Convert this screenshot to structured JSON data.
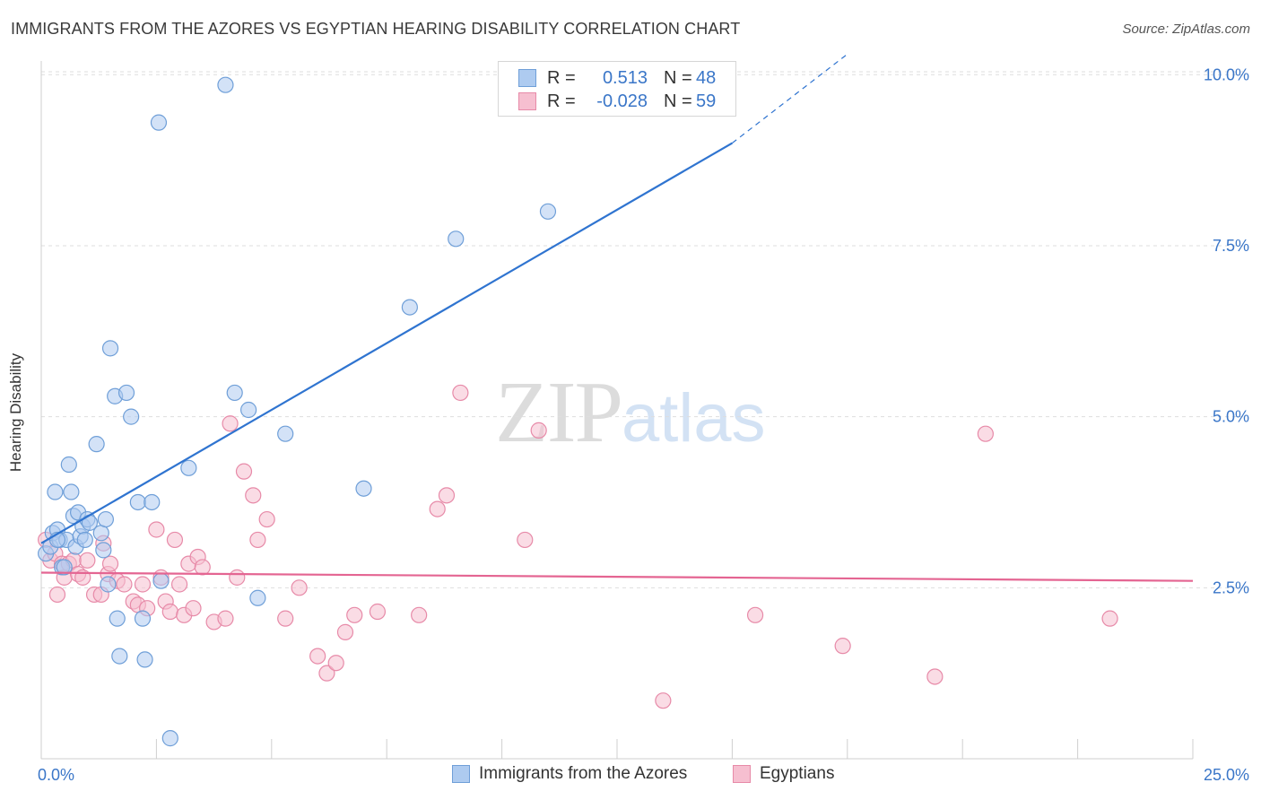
{
  "header": {
    "title": "IMMIGRANTS FROM THE AZORES VS EGYPTIAN HEARING DISABILITY CORRELATION CHART",
    "source": "Source: ZipAtlas.com"
  },
  "watermark": {
    "zip": "ZIP",
    "atlas": "atlas"
  },
  "legend_top": [
    {
      "r_label": "R =",
      "r_value": "0.513",
      "n_label": "N =",
      "n_value": "48"
    },
    {
      "r_label": "R =",
      "r_value": "-0.028",
      "n_label": "N =",
      "n_value": "59"
    }
  ],
  "legend_bottom": [
    "Immigrants from the Azores",
    "Egyptians"
  ],
  "colors": {
    "blue_fill": "#aecbf0",
    "blue_stroke": "#6f9fd8",
    "blue_line": "#2f74d0",
    "pink_fill": "#f6bfd0",
    "pink_stroke": "#e78aa8",
    "pink_line": "#e46592",
    "axis_text": "#3a76c8",
    "grid": "#dedede"
  },
  "chart_data": {
    "type": "scatter",
    "title": "IMMIGRANTS FROM THE AZORES VS EGYPTIAN HEARING DISABILITY CORRELATION CHART",
    "xlabel": "",
    "ylabel": "Hearing Disability",
    "xlim": [
      0,
      25
    ],
    "ylim": [
      0,
      10.2
    ],
    "x_ticks": [
      0,
      2.5,
      5,
      7.5,
      10,
      12.5,
      15,
      17.5,
      20,
      22.5,
      25
    ],
    "x_tick_labels": [
      {
        "value": 0,
        "label": "0.0%"
      },
      {
        "value": 25,
        "label": "25.0%"
      }
    ],
    "y_ticks": [
      {
        "value": 2.5,
        "label": "2.5%"
      },
      {
        "value": 5,
        "label": "5.0%"
      },
      {
        "value": 7.5,
        "label": "7.5%"
      },
      {
        "value": 10,
        "label": "10.0%"
      }
    ],
    "grid": true,
    "legend": "top-center",
    "series": [
      {
        "name": "Immigrants from the Azores",
        "r": 0.513,
        "n": 48,
        "trend": {
          "x0": 0,
          "y0": 3.15,
          "x1": 15,
          "y1": 9.0,
          "dash_to_x": 17.5,
          "dash_to_y": 10.3
        },
        "points": [
          [
            0.1,
            3.0
          ],
          [
            0.2,
            3.1
          ],
          [
            0.25,
            3.3
          ],
          [
            0.3,
            3.9
          ],
          [
            0.35,
            3.35
          ],
          [
            0.4,
            3.2
          ],
          [
            0.45,
            2.8
          ],
          [
            0.55,
            3.2
          ],
          [
            0.6,
            4.3
          ],
          [
            0.65,
            3.9
          ],
          [
            0.7,
            3.55
          ],
          [
            0.75,
            3.1
          ],
          [
            0.8,
            3.6
          ],
          [
            0.85,
            3.25
          ],
          [
            0.9,
            3.4
          ],
          [
            0.95,
            3.2
          ],
          [
            1.0,
            3.5
          ],
          [
            1.05,
            3.45
          ],
          [
            1.2,
            4.6
          ],
          [
            1.3,
            3.3
          ],
          [
            1.35,
            3.05
          ],
          [
            1.45,
            2.55
          ],
          [
            1.5,
            6.0
          ],
          [
            1.6,
            5.3
          ],
          [
            1.65,
            2.05
          ],
          [
            1.7,
            1.5
          ],
          [
            1.85,
            5.35
          ],
          [
            1.95,
            5.0
          ],
          [
            2.1,
            3.75
          ],
          [
            2.2,
            2.05
          ],
          [
            2.25,
            1.45
          ],
          [
            2.4,
            3.75
          ],
          [
            2.55,
            9.3
          ],
          [
            2.6,
            2.6
          ],
          [
            2.8,
            0.3
          ],
          [
            3.2,
            4.25
          ],
          [
            4.0,
            9.85
          ],
          [
            4.2,
            5.35
          ],
          [
            4.5,
            5.1
          ],
          [
            4.7,
            2.35
          ],
          [
            5.3,
            4.75
          ],
          [
            7.0,
            3.95
          ],
          [
            8.0,
            6.6
          ],
          [
            9.0,
            7.6
          ],
          [
            11.0,
            8.0
          ],
          [
            1.4,
            3.5
          ],
          [
            0.5,
            2.8
          ],
          [
            0.35,
            3.2
          ]
        ]
      },
      {
        "name": "Egyptians",
        "r": -0.028,
        "n": 59,
        "trend": {
          "x0": 0,
          "y0": 2.72,
          "x1": 25,
          "y1": 2.6
        },
        "points": [
          [
            0.1,
            3.2
          ],
          [
            0.2,
            2.9
          ],
          [
            0.3,
            3.0
          ],
          [
            0.35,
            2.4
          ],
          [
            0.45,
            2.85
          ],
          [
            0.5,
            2.65
          ],
          [
            0.6,
            2.85
          ],
          [
            0.7,
            2.9
          ],
          [
            0.8,
            2.7
          ],
          [
            0.9,
            2.65
          ],
          [
            1.0,
            2.9
          ],
          [
            1.15,
            2.4
          ],
          [
            1.3,
            2.4
          ],
          [
            1.35,
            3.15
          ],
          [
            1.45,
            2.7
          ],
          [
            1.5,
            2.85
          ],
          [
            1.65,
            2.6
          ],
          [
            1.8,
            2.55
          ],
          [
            2.0,
            2.3
          ],
          [
            2.1,
            2.25
          ],
          [
            2.2,
            2.55
          ],
          [
            2.3,
            2.2
          ],
          [
            2.5,
            3.35
          ],
          [
            2.6,
            2.65
          ],
          [
            2.7,
            2.3
          ],
          [
            2.8,
            2.15
          ],
          [
            2.9,
            3.2
          ],
          [
            3.0,
            2.55
          ],
          [
            3.1,
            2.1
          ],
          [
            3.2,
            2.85
          ],
          [
            3.3,
            2.2
          ],
          [
            3.4,
            2.95
          ],
          [
            3.5,
            2.8
          ],
          [
            3.75,
            2.0
          ],
          [
            4.0,
            2.05
          ],
          [
            4.1,
            4.9
          ],
          [
            4.25,
            2.65
          ],
          [
            4.4,
            4.2
          ],
          [
            4.6,
            3.85
          ],
          [
            4.7,
            3.2
          ],
          [
            4.9,
            3.5
          ],
          [
            5.3,
            2.05
          ],
          [
            5.6,
            2.5
          ],
          [
            6.0,
            1.5
          ],
          [
            6.2,
            1.25
          ],
          [
            6.4,
            1.4
          ],
          [
            6.6,
            1.85
          ],
          [
            6.8,
            2.1
          ],
          [
            7.3,
            2.15
          ],
          [
            8.2,
            2.1
          ],
          [
            8.6,
            3.65
          ],
          [
            8.8,
            3.85
          ],
          [
            9.1,
            5.35
          ],
          [
            10.5,
            3.2
          ],
          [
            10.8,
            4.8
          ],
          [
            13.5,
            0.85
          ],
          [
            15.5,
            2.1
          ],
          [
            17.4,
            1.65
          ],
          [
            19.4,
            1.2
          ]
        ],
        "extra_points": [
          [
            20.5,
            4.75
          ],
          [
            23.2,
            2.05
          ]
        ]
      }
    ]
  }
}
